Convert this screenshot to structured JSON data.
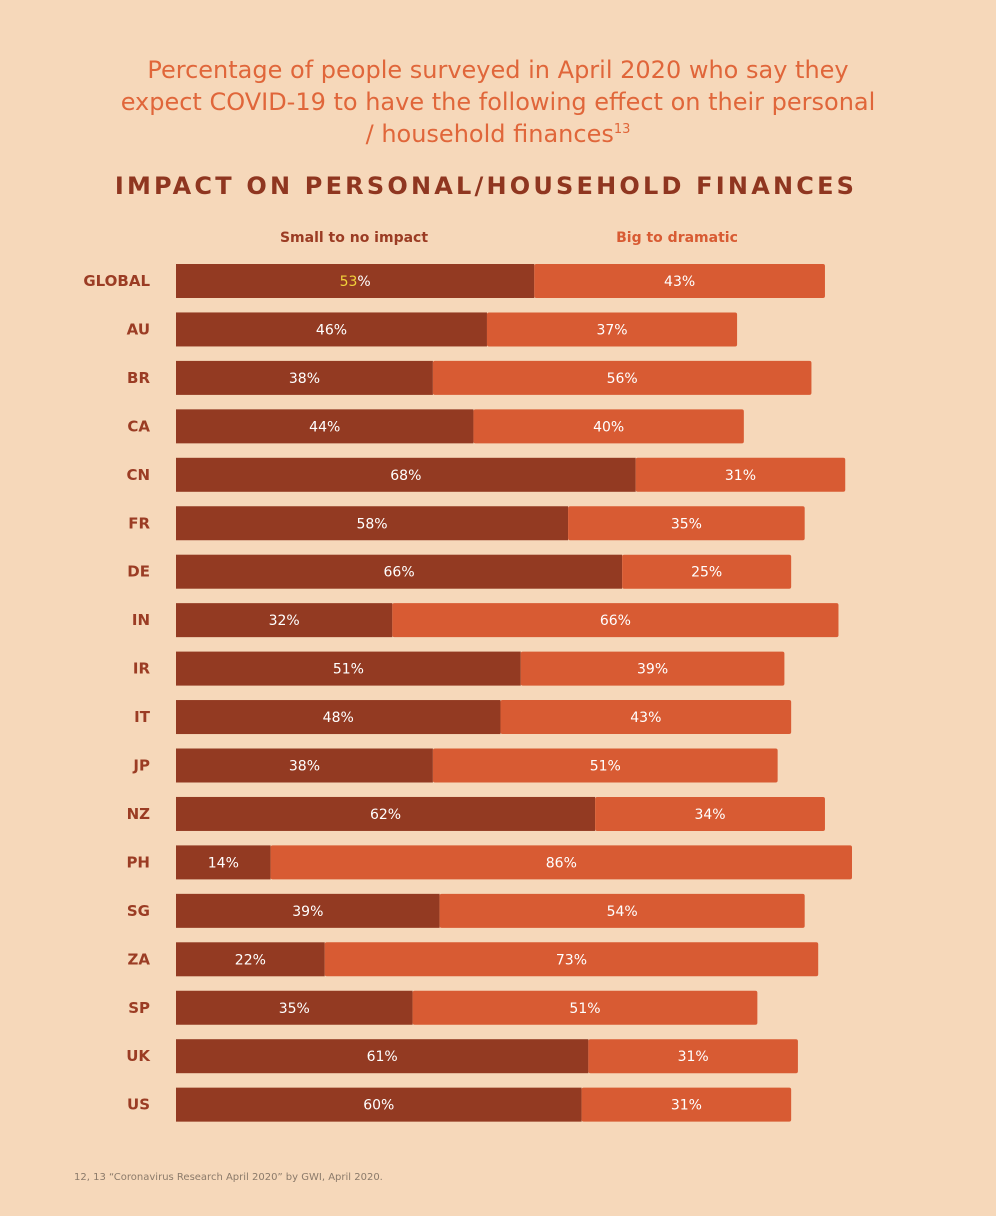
{
  "intro": {
    "text": "Percentage of people surveyed in April 2020 who say they expect COVID-19 to have the following effect on their personal / household finances",
    "footnote_ref": "13"
  },
  "colors": {
    "background": "#F6D8BA",
    "small_series": "#933A22",
    "big_series": "#D85B33",
    "highlight_text": "#F2D33A",
    "label_text": "#9B3C24"
  },
  "chart_data": {
    "type": "bar",
    "orientation": "horizontal",
    "stacked": true,
    "title": "IMPACT ON PERSONAL/HOUSEHOLD FINANCES",
    "xlim": [
      0,
      100
    ],
    "grid": false,
    "legend_position": "top",
    "value_suffix": "%",
    "categories": [
      "GLOBAL",
      "AU",
      "BR",
      "CA",
      "CN",
      "FR",
      "DE",
      "IN",
      "IR",
      "IT",
      "JP",
      "NZ",
      "PH",
      "SG",
      "ZA",
      "SP",
      "UK",
      "US"
    ],
    "series": [
      {
        "name": "Small to no impact",
        "values": [
          53,
          46,
          38,
          44,
          68,
          58,
          66,
          32,
          51,
          48,
          38,
          62,
          14,
          39,
          22,
          35,
          61,
          60
        ]
      },
      {
        "name": "Big to dramatic",
        "values": [
          43,
          37,
          56,
          40,
          31,
          35,
          25,
          66,
          39,
          43,
          51,
          34,
          86,
          54,
          73,
          51,
          31,
          31
        ]
      }
    ]
  },
  "footnote": "12, 13 “Coronavirus Research April 2020” by GWI, April 2020."
}
